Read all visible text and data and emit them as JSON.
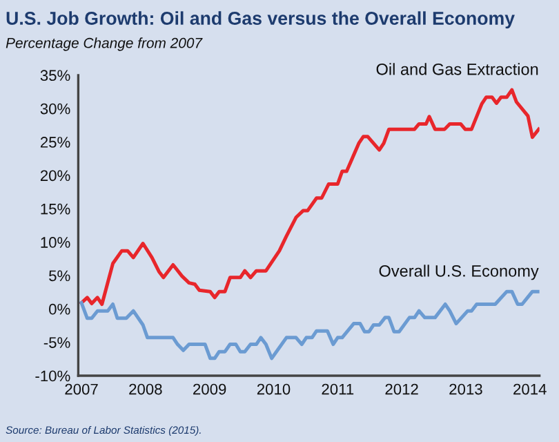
{
  "chart_data": {
    "type": "line",
    "title": "U.S. Job Growth: Oil and Gas versus the Overall Economy",
    "subtitle": "Percentage Change from 2007",
    "annotations": [
      "Source: Bureau of Labor Statistics (2015)."
    ],
    "series": [
      {
        "name": "Oil and Gas Extraction",
        "color": "#e8262b",
        "x": [
          2007.0,
          2007.09,
          2007.16,
          2007.25,
          2007.32,
          2007.49,
          2007.63,
          2007.72,
          2007.81,
          2007.96,
          2008.1,
          2008.21,
          2008.28,
          2008.43,
          2008.57,
          2008.68,
          2008.77,
          2008.84,
          2009.01,
          2009.08,
          2009.15,
          2009.24,
          2009.32,
          2009.48,
          2009.55,
          2009.64,
          2009.73,
          2009.88,
          2010.09,
          2010.2,
          2010.35,
          2010.46,
          2010.53,
          2010.67,
          2010.75,
          2010.86,
          2011.0,
          2011.07,
          2011.14,
          2011.33,
          2011.4,
          2011.47,
          2011.65,
          2011.72,
          2011.8,
          2012.2,
          2012.27,
          2012.38,
          2012.43,
          2012.52,
          2012.67,
          2012.75,
          2012.92,
          2012.99,
          2013.09,
          2013.25,
          2013.32,
          2013.41,
          2013.48,
          2013.55,
          2013.64,
          2013.72,
          2013.79,
          2013.97,
          2014.04,
          2014.14
        ],
        "values": [
          0.9,
          1.7,
          0.8,
          1.7,
          0.7,
          6.8,
          8.7,
          8.7,
          7.7,
          9.8,
          7.7,
          5.6,
          4.7,
          6.6,
          4.9,
          3.9,
          3.7,
          2.8,
          2.6,
          1.7,
          2.6,
          2.6,
          4.7,
          4.7,
          5.7,
          4.7,
          5.7,
          5.7,
          8.7,
          10.9,
          13.7,
          14.7,
          14.7,
          16.6,
          16.6,
          18.7,
          18.7,
          20.6,
          20.6,
          24.8,
          25.8,
          25.8,
          23.8,
          24.8,
          26.9,
          26.9,
          27.7,
          27.7,
          28.8,
          26.9,
          26.9,
          27.7,
          27.7,
          26.9,
          26.9,
          30.7,
          31.7,
          31.7,
          30.8,
          31.7,
          31.7,
          32.8,
          31.0,
          28.9,
          25.7,
          26.9
        ]
      },
      {
        "name": "Overall U.S. Economy",
        "color": "#6b9bd2",
        "x": [
          2007.0,
          2007.09,
          2007.16,
          2007.25,
          2007.41,
          2007.49,
          2007.56,
          2007.7,
          2007.81,
          2007.96,
          2008.03,
          2008.43,
          2008.5,
          2008.59,
          2008.68,
          2008.93,
          2009.01,
          2009.08,
          2009.15,
          2009.24,
          2009.32,
          2009.41,
          2009.48,
          2009.55,
          2009.64,
          2009.73,
          2009.8,
          2009.88,
          2009.97,
          2010.2,
          2010.35,
          2010.44,
          2010.51,
          2010.6,
          2010.67,
          2010.84,
          2010.93,
          2011.0,
          2011.07,
          2011.25,
          2011.35,
          2011.42,
          2011.49,
          2011.56,
          2011.65,
          2011.74,
          2011.8,
          2011.88,
          2011.96,
          2012.12,
          2012.2,
          2012.27,
          2012.36,
          2012.52,
          2012.68,
          2012.75,
          2012.85,
          2013.03,
          2013.09,
          2013.17,
          2013.46,
          2013.64,
          2013.72,
          2013.81,
          2013.88,
          2014.04,
          2014.14
        ],
        "values": [
          0.9,
          -1.4,
          -1.4,
          -0.3,
          -0.3,
          0.7,
          -1.4,
          -1.4,
          -0.3,
          -2.4,
          -4.3,
          -4.3,
          -5.3,
          -6.2,
          -5.3,
          -5.3,
          -7.4,
          -7.4,
          -6.4,
          -6.4,
          -5.3,
          -5.3,
          -6.4,
          -6.4,
          -5.3,
          -5.3,
          -4.3,
          -5.3,
          -7.4,
          -4.3,
          -4.3,
          -5.3,
          -4.3,
          -4.3,
          -3.3,
          -3.3,
          -5.3,
          -4.3,
          -4.3,
          -2.2,
          -2.2,
          -3.4,
          -3.4,
          -2.4,
          -2.4,
          -1.3,
          -1.3,
          -3.4,
          -3.4,
          -1.3,
          -1.3,
          -0.3,
          -1.3,
          -1.3,
          0.7,
          -0.3,
          -2.2,
          -0.3,
          -0.3,
          0.7,
          0.7,
          2.6,
          2.6,
          0.7,
          0.7,
          2.6,
          2.6
        ]
      }
    ],
    "xlim": [
      2006.95,
      2014.15
    ],
    "xticks": [
      2007,
      2008,
      2009,
      2010,
      2011,
      2012,
      2013,
      2014
    ],
    "ylim": [
      -10,
      35
    ],
    "yticks": [
      {
        "value": -10,
        "label": "-10%"
      },
      {
        "value": -5,
        "label": "-5%"
      },
      {
        "value": 0,
        "label": "0%"
      },
      {
        "value": 5,
        "label": "5%"
      },
      {
        "value": 10,
        "label": "10%"
      },
      {
        "value": 15,
        "label": "15%"
      },
      {
        "value": 20,
        "label": "20%"
      },
      {
        "value": 25,
        "label": "25%"
      },
      {
        "value": 30,
        "label": "30%"
      },
      {
        "value": 35,
        "label": "35%"
      }
    ],
    "grid": false,
    "legend": false,
    "marker": "none",
    "line_style": "solid"
  }
}
